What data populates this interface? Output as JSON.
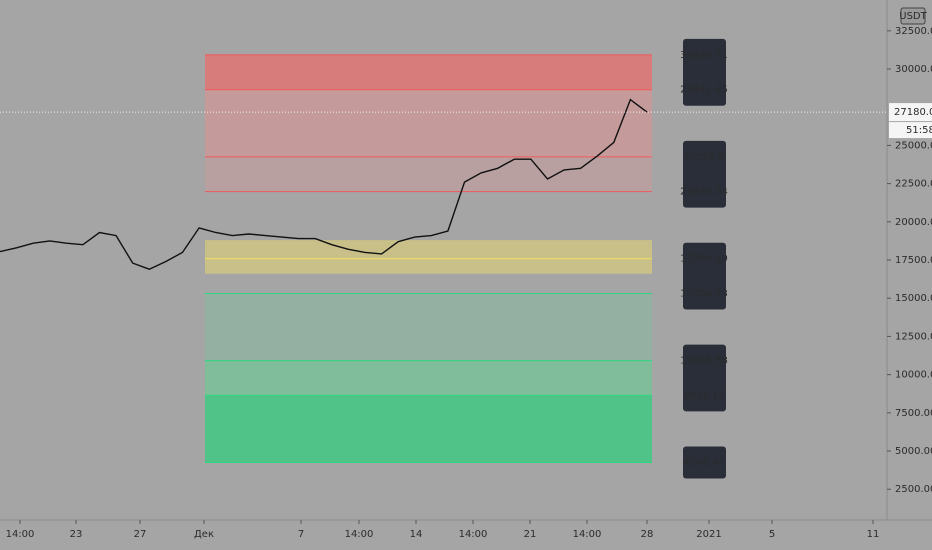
{
  "chart_data": {
    "type": "line",
    "currency": "USDT",
    "countdown": "51:58",
    "last_price": {
      "value": 27180,
      "label": "27180.00"
    },
    "color": "#111111",
    "values": [
      18050,
      18300,
      18600,
      18750,
      18600,
      18500,
      19300,
      19100,
      17300,
      16900,
      17400,
      18000,
      19600,
      19300,
      19100,
      19200,
      19100,
      19000,
      18900,
      18900,
      18500,
      18200,
      18000,
      17900,
      18700,
      19000,
      19100,
      19400,
      22600,
      23200,
      23500,
      24100,
      24100,
      22800,
      23400,
      23500,
      24300,
      25200,
      28000,
      27180
    ],
    "xticks": [
      "14:00",
      "23",
      "27",
      "Дек",
      "7",
      "14:00",
      "14",
      "14:00",
      "21",
      "14:00",
      "28",
      "2021",
      "5",
      "11"
    ],
    "ylim": [
      485,
      34516
    ],
    "yticks": [
      {
        "value": 2500,
        "label": "2500.00"
      },
      {
        "value": 5000,
        "label": "5000.00"
      },
      {
        "value": 7500,
        "label": "7500.00"
      },
      {
        "value": 10000,
        "label": "10000.00"
      },
      {
        "value": 12500,
        "label": "12500.00"
      },
      {
        "value": 15000,
        "label": "15000.00"
      },
      {
        "value": 17500,
        "label": "17500.00"
      },
      {
        "value": 20000,
        "label": "20000.00"
      },
      {
        "value": 22500,
        "label": "22500.00"
      },
      {
        "value": 25000,
        "label": "25000.00"
      },
      {
        "value": 30000,
        "label": "30000.00"
      },
      {
        "value": 32500,
        "label": "32500.00"
      }
    ],
    "zones": [
      {
        "from": 30920.91,
        "to": 28642.45,
        "color": "#d77b7b"
      },
      {
        "from": 28642.45,
        "to": 24252.8,
        "color": "#c49a9a"
      },
      {
        "from": 24252.8,
        "to": 21974.34,
        "color": "#b8a0a0"
      },
      {
        "from": 18800,
        "to": 16600,
        "color": "#c9bf89"
      },
      {
        "from": 15306.23,
        "to": 10916.58,
        "color": "#93b0a2"
      },
      {
        "from": 10916.58,
        "to": 8638.12,
        "color": "#7fbd9b"
      },
      {
        "from": 8638.12,
        "to": 4248.47,
        "color": "#50c488"
      }
    ],
    "levels": [
      {
        "value": 30920.91,
        "color": "#f05a5a"
      },
      {
        "value": 28642.45,
        "color": "#f05a5a"
      },
      {
        "value": 24252.8,
        "color": "#f05a5a"
      },
      {
        "value": 21974.34,
        "color": "#f05a5a"
      },
      {
        "value": 17584.69,
        "color": "#f2e35a"
      },
      {
        "value": 15306.23,
        "color": "#2fd67f"
      },
      {
        "value": 10916.58,
        "color": "#2fd67f"
      },
      {
        "value": 8638.12,
        "color": "#2fd67f"
      },
      {
        "value": 4248.47,
        "color": "#2fd67f"
      }
    ]
  }
}
